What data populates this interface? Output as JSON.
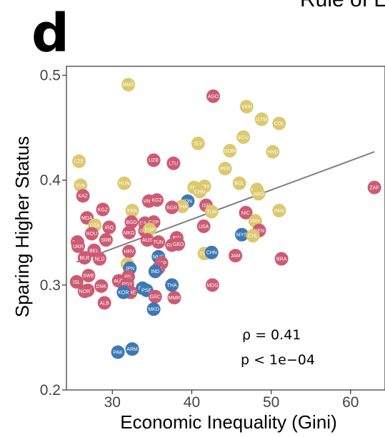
{
  "panel_letter": "d",
  "top_text": "Rule of L",
  "annotation": {
    "rho": "ρ = 0.41",
    "p": "p < 1e−04"
  },
  "colors": {
    "red": "#cd5a73",
    "yellow": "#dcc86e",
    "blue": "#3d78b4",
    "line": "#7f7f7f"
  },
  "chart_data": {
    "type": "scatter",
    "xlabel": "Economic Inequality (Gini)",
    "ylabel": "Sparing Higher Status",
    "xlim": [
      23.5,
      65
    ],
    "ylim": [
      0.2,
      0.51
    ],
    "x_ticks": [
      "30",
      "40",
      "50",
      "60"
    ],
    "y_ticks": [
      "0.2",
      "0.3",
      "0.4",
      "0.5"
    ],
    "grid": false,
    "fit_line": {
      "x": [
        25.5,
        63.0
      ],
      "y": [
        0.322,
        0.427
      ]
    },
    "points": [
      {
        "label": "MNG",
        "x": 32.0,
        "y": 0.491,
        "color": "yellow"
      },
      {
        "label": "AGO",
        "x": 42.7,
        "y": 0.48,
        "color": "red"
      },
      {
        "label": "VEN",
        "x": 46.9,
        "y": 0.47,
        "color": "yellow"
      },
      {
        "label": "GTM",
        "x": 48.8,
        "y": 0.458,
        "color": "yellow"
      },
      {
        "label": "COL",
        "x": 51.0,
        "y": 0.454,
        "color": "yellow"
      },
      {
        "label": "ECU",
        "x": 46.5,
        "y": 0.441,
        "color": "yellow"
      },
      {
        "label": "SLV",
        "x": 40.8,
        "y": 0.435,
        "color": "yellow"
      },
      {
        "label": "DOM",
        "x": 44.8,
        "y": 0.428,
        "color": "yellow"
      },
      {
        "label": "HND",
        "x": 50.2,
        "y": 0.427,
        "color": "yellow"
      },
      {
        "label": "CZE",
        "x": 25.8,
        "y": 0.418,
        "color": "yellow"
      },
      {
        "label": "UZB",
        "x": 35.2,
        "y": 0.419,
        "color": "red"
      },
      {
        "label": "LTU",
        "x": 37.7,
        "y": 0.416,
        "color": "red"
      },
      {
        "label": "PER",
        "x": 44.2,
        "y": 0.411,
        "color": "yellow"
      },
      {
        "label": "HUN",
        "x": 31.5,
        "y": 0.397,
        "color": "yellow"
      },
      {
        "label": "SVK",
        "x": 26.0,
        "y": 0.395,
        "color": "yellow"
      },
      {
        "label": "BOL",
        "x": 46.0,
        "y": 0.397,
        "color": "yellow"
      },
      {
        "label": "PHL",
        "x": 40.3,
        "y": 0.393,
        "color": "yellow"
      },
      {
        "label": "URY",
        "x": 41.6,
        "y": 0.394,
        "color": "yellow"
      },
      {
        "label": "CHN",
        "x": 41.0,
        "y": 0.389,
        "color": "yellow"
      },
      {
        "label": "MEX",
        "x": 48.2,
        "y": 0.391,
        "color": "yellow"
      },
      {
        "label": "ARG",
        "x": 48.4,
        "y": 0.387,
        "color": "yellow"
      },
      {
        "label": "ZAF",
        "x": 63.0,
        "y": 0.393,
        "color": "red"
      },
      {
        "label": "KAZ",
        "x": 26.3,
        "y": 0.385,
        "color": "red"
      },
      {
        "label": "VNM",
        "x": 34.6,
        "y": 0.38,
        "color": "red"
      },
      {
        "label": "KGZ",
        "x": 35.6,
        "y": 0.381,
        "color": "red"
      },
      {
        "label": "IDN",
        "x": 39.5,
        "y": 0.38,
        "color": "blue"
      },
      {
        "label": "THA",
        "x": 38.8,
        "y": 0.375,
        "color": "yellow"
      },
      {
        "label": "BGR",
        "x": 37.5,
        "y": 0.374,
        "color": "red"
      },
      {
        "label": "ISR",
        "x": 41.8,
        "y": 0.376,
        "color": "red"
      },
      {
        "label": "TUR",
        "x": 42.5,
        "y": 0.37,
        "color": "yellow"
      },
      {
        "label": "MDA",
        "x": 26.8,
        "y": 0.364,
        "color": "red"
      },
      {
        "label": "KGZ",
        "x": 28.8,
        "y": 0.372,
        "color": "red"
      },
      {
        "label": "FRA",
        "x": 32.5,
        "y": 0.371,
        "color": "yellow"
      },
      {
        "label": "NIC",
        "x": 46.8,
        "y": 0.369,
        "color": "red"
      },
      {
        "label": "PAN",
        "x": 51.0,
        "y": 0.371,
        "color": "yellow"
      },
      {
        "label": "BGD",
        "x": 32.4,
        "y": 0.36,
        "color": "red"
      },
      {
        "label": "CAN",
        "x": 34.1,
        "y": 0.359,
        "color": "red"
      },
      {
        "label": "CYP",
        "x": 35.2,
        "y": 0.36,
        "color": "red"
      },
      {
        "label": "PRY",
        "x": 48.0,
        "y": 0.361,
        "color": "yellow"
      },
      {
        "label": "DZA",
        "x": 27.8,
        "y": 0.357,
        "color": "yellow"
      },
      {
        "label": "IRQ",
        "x": 29.6,
        "y": 0.355,
        "color": "red"
      },
      {
        "label": "GBR",
        "x": 34.1,
        "y": 0.352,
        "color": "red"
      },
      {
        "label": "ESP",
        "x": 34.7,
        "y": 0.353,
        "color": "yellow"
      },
      {
        "label": "USA",
        "x": 41.5,
        "y": 0.356,
        "color": "red"
      },
      {
        "label": "ROU",
        "x": 27.4,
        "y": 0.349,
        "color": "red"
      },
      {
        "label": "MKD",
        "x": 32.1,
        "y": 0.35,
        "color": "red"
      },
      {
        "label": "KEN",
        "x": 48.5,
        "y": 0.352,
        "color": "red"
      },
      {
        "label": "MYS",
        "x": 46.3,
        "y": 0.348,
        "color": "blue"
      },
      {
        "label": "CHL",
        "x": 47.7,
        "y": 0.347,
        "color": "yellow"
      },
      {
        "label": "SRB",
        "x": 29.2,
        "y": 0.343,
        "color": "red"
      },
      {
        "label": "AUS",
        "x": 34.4,
        "y": 0.343,
        "color": "red"
      },
      {
        "label": "TUN",
        "x": 35.8,
        "y": 0.341,
        "color": "red"
      },
      {
        "label": "IRN",
        "x": 38.1,
        "y": 0.345,
        "color": "red"
      },
      {
        "label": "RUS",
        "x": 37.5,
        "y": 0.338,
        "color": "red"
      },
      {
        "label": "GEO",
        "x": 38.3,
        "y": 0.339,
        "color": "red"
      },
      {
        "label": "SVN",
        "x": 25.6,
        "y": 0.341,
        "color": "red"
      },
      {
        "label": "UKR",
        "x": 25.7,
        "y": 0.337,
        "color": "red"
      },
      {
        "label": "BEL",
        "x": 27.7,
        "y": 0.333,
        "color": "red"
      },
      {
        "label": "HRV",
        "x": 32.1,
        "y": 0.332,
        "color": "red"
      },
      {
        "label": "TUR",
        "x": 41.6,
        "y": 0.33,
        "color": "yellow"
      },
      {
        "label": "CHN",
        "x": 42.5,
        "y": 0.331,
        "color": "blue"
      },
      {
        "label": "JAM",
        "x": 45.5,
        "y": 0.328,
        "color": "red"
      },
      {
        "label": "BRA",
        "x": 51.3,
        "y": 0.325,
        "color": "red"
      },
      {
        "label": "BLR",
        "x": 26.5,
        "y": 0.326,
        "color": "red"
      },
      {
        "label": "NLD",
        "x": 28.4,
        "y": 0.325,
        "color": "red"
      },
      {
        "label": "MUS",
        "x": 35.8,
        "y": 0.327,
        "color": "blue"
      },
      {
        "label": "ESP",
        "x": 36.2,
        "y": 0.321,
        "color": "red"
      },
      {
        "label": "SEN",
        "x": 31.9,
        "y": 0.32,
        "color": "yellow"
      },
      {
        "label": "JPN",
        "x": 32.2,
        "y": 0.316,
        "color": "blue"
      },
      {
        "label": "POL",
        "x": 35.8,
        "y": 0.316,
        "color": "red"
      },
      {
        "label": "IND",
        "x": 35.4,
        "y": 0.313,
        "color": "blue"
      },
      {
        "label": "SWE",
        "x": 27.0,
        "y": 0.309,
        "color": "red"
      },
      {
        "label": "ISL",
        "x": 25.5,
        "y": 0.303,
        "color": "red"
      },
      {
        "label": "IRL",
        "x": 32.0,
        "y": 0.308,
        "color": "red"
      },
      {
        "label": "AUT",
        "x": 30.8,
        "y": 0.304,
        "color": "red"
      },
      {
        "label": "EGY",
        "x": 31.9,
        "y": 0.301,
        "color": "red"
      },
      {
        "label": "DNK",
        "x": 28.6,
        "y": 0.299,
        "color": "red"
      },
      {
        "label": "THA",
        "x": 37.5,
        "y": 0.3,
        "color": "blue"
      },
      {
        "label": "MDG",
        "x": 42.6,
        "y": 0.3,
        "color": "red"
      },
      {
        "label": "FIN",
        "x": 26.9,
        "y": 0.295,
        "color": "red"
      },
      {
        "label": "NOR",
        "x": 26.5,
        "y": 0.294,
        "color": "red"
      },
      {
        "label": "BIH",
        "x": 33.8,
        "y": 0.297,
        "color": "blue"
      },
      {
        "label": "PSE",
        "x": 34.3,
        "y": 0.295,
        "color": "blue"
      },
      {
        "label": "DEU",
        "x": 31.6,
        "y": 0.294,
        "color": "red"
      },
      {
        "label": "CHE",
        "x": 32.3,
        "y": 0.293,
        "color": "red"
      },
      {
        "label": "KOR",
        "x": 31.4,
        "y": 0.293,
        "color": "blue"
      },
      {
        "label": "GRC",
        "x": 35.4,
        "y": 0.289,
        "color": "red"
      },
      {
        "label": "MMR",
        "x": 37.8,
        "y": 0.288,
        "color": "red"
      },
      {
        "label": "ALB",
        "x": 29.0,
        "y": 0.283,
        "color": "red"
      },
      {
        "label": "MKD",
        "x": 35.2,
        "y": 0.277,
        "color": "blue"
      },
      {
        "label": "PAK",
        "x": 30.7,
        "y": 0.236,
        "color": "blue"
      },
      {
        "label": "ARM",
        "x": 32.5,
        "y": 0.239,
        "color": "blue"
      }
    ]
  }
}
